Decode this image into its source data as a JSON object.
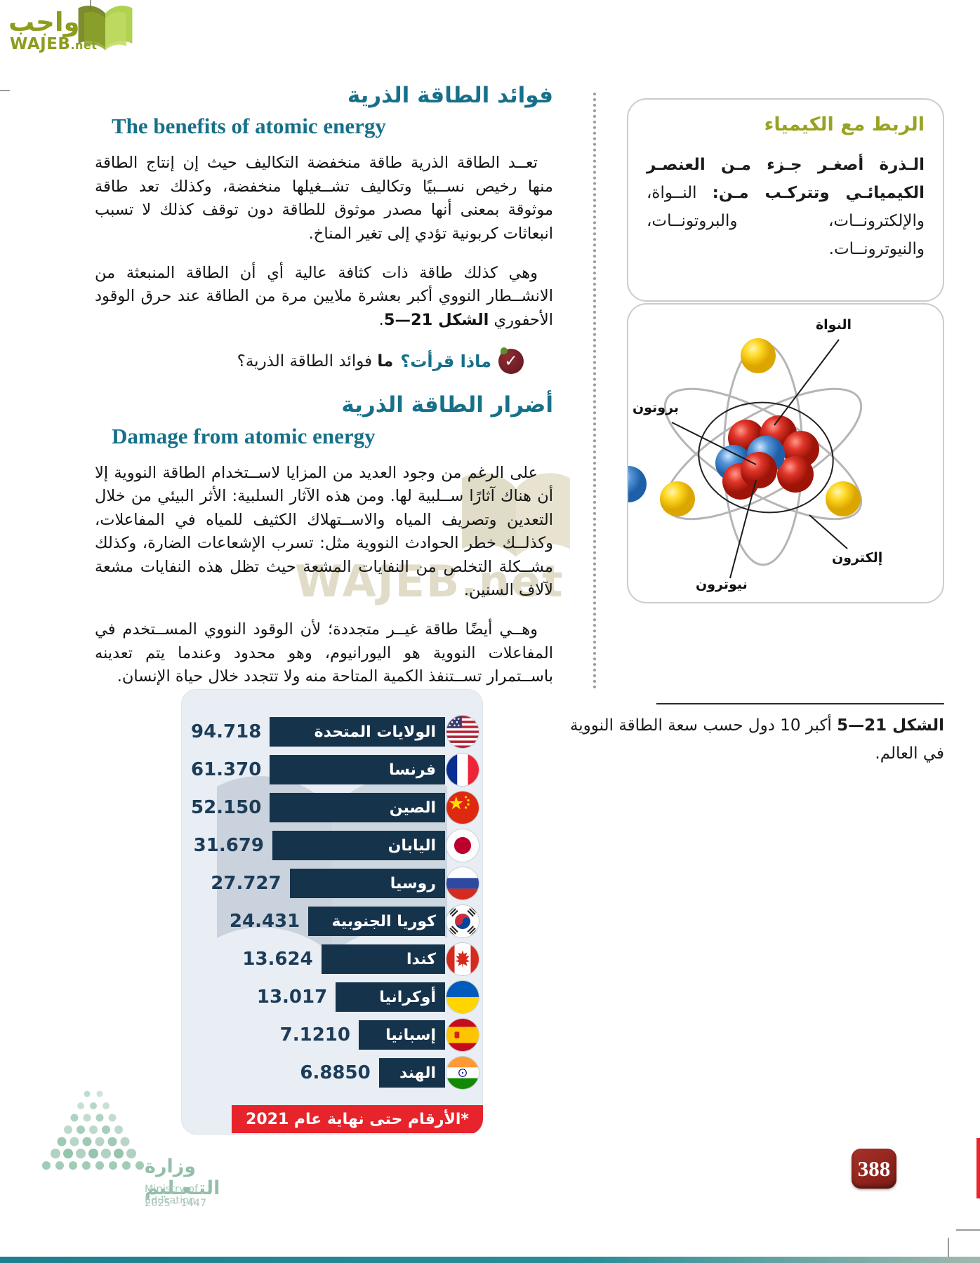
{
  "branding": {
    "logo_arabic": "واجب",
    "logo_latin_bold": "WAJEB",
    "logo_latin_suffix": ".net",
    "watermark_text": "WAJEB.net"
  },
  "sections": {
    "benefits": {
      "title_ar": "فوائد الطاقة الذرية",
      "title_en": "The benefits of atomic energy",
      "para1": "تعــد الطاقة الذرية طاقة منخفضة التكاليف حيث إن إنتاج الطاقة منها رخيص نســبيًا وتكاليف تشــغيلها منخفضة، وكذلك تعد طاقة موثوقة بمعنى أنها مصدر موثوق للطاقة دون توقف كذلك لا تسبب انبعاثات كربونية تؤدي إلى تغير المناخ.",
      "para2_text": "وهي كذلك طاقة ذات كثافة عالية أي أن الطاقة المنبعثة من الانشــطار النووي أكبر بعشرة ملايين مرة من الطاقة عند حرق الوقود الأحفوري ",
      "para2_figref": "الشكل 21—5",
      "para2_end": "."
    },
    "check": {
      "label": "ماذا قرأت؟",
      "question_bold": "ما",
      "question_rest": " فوائد الطاقة الذرية؟"
    },
    "damage": {
      "title_ar": "أضرار الطاقة الذرية",
      "title_en": "Damage from atomic energy",
      "para1": "على الرغم من وجود العديد من المزايا لاســتخدام الطاقة النووية إلا أن هناك آثارًا ســلبية لها. ومن هذه الآثار السلبية: الأثر البيئي من خلال التعدين وتصريف المياه والاســتهلاك الكثيف للمياه في المفاعلات، وكذلــك خطر الحوادث النووية مثل: تسرب الإشعاعات الضارة، وكذلك مشــكلة التخلص من النفايات المشعة حيث تظل هذه النفايات مشعة لآلاف السنين.",
      "para2": "وهــي أيضًا طاقة غيــر متجددة؛ لأن الوقود النووي المســتخدم في المفاعلات النووية هو اليورانيوم، وهو محدود وعندما يتم تعدينه باســتمرار تســتنفذ الكمية المتاحة منه ولا تتجدد خلال حياة الإنسان."
    }
  },
  "sidebar": {
    "chem_link": {
      "title": "الربط مع الكيمياء",
      "body_bold": "الـذرة أصغـر جـزء مـن العنصـر الكيميائـي وتتركـب مـن:",
      "body_rest": " النــواة، والإلكترونــات، والبروتونــات، والنيوترونــات."
    },
    "atom_labels": {
      "nucleus": "النواة",
      "proton": "بروتون",
      "neutron": "نيوترون",
      "electron": "إلكترون"
    },
    "figure_caption": {
      "label": "الشكل 21—5",
      "text": " أكبر 10 دول حسب سعة الطاقة النووية في العالم."
    }
  },
  "chart_data": {
    "type": "bar",
    "orientation": "horizontal",
    "categories": [
      "الولايات المتحدة",
      "فرنسا",
      "الصين",
      "اليابان",
      "روسيا",
      "كوريا الجنوبية",
      "كندا",
      "أوكرانيا",
      "إسبانيا",
      "الهند"
    ],
    "values": [
      94.718,
      61.37,
      52.15,
      31.679,
      27.727,
      24.431,
      13.624,
      13.017,
      7.121,
      6.885
    ],
    "value_labels": [
      "94.718",
      "61.370",
      "52.150",
      "31.679",
      "27.727",
      "24.431",
      "13.624",
      "13.017",
      "7.1210",
      "6.8850"
    ],
    "flags": [
      "us",
      "fr",
      "cn",
      "jp",
      "ru",
      "kr",
      "ca",
      "ua",
      "es",
      "in"
    ],
    "footnote": "*الأرقام حتى نهاية عام 2021",
    "bar_color": "#16334c",
    "panel_bg": "#e8eef4",
    "footnote_bg": "#e7232b",
    "legend": "none",
    "grid": "off"
  },
  "footer": {
    "ministry_ar": "وزارة التـعـليم",
    "ministry_en": "Ministry of Education",
    "years": "2025 - 1447",
    "page_number": "388"
  }
}
